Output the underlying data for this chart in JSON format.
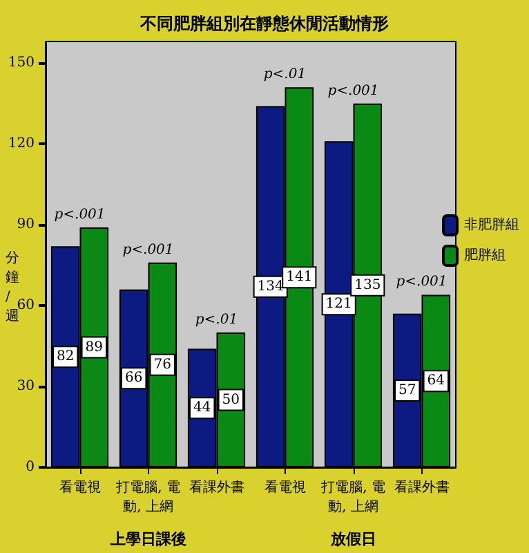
{
  "chart_data": {
    "type": "bar",
    "title": "不同肥胖組別在靜態休閒活動情形",
    "ylabel": "分鐘/週",
    "categories": [
      "看電視",
      "打電腦, 電動, 上網",
      "看課外書",
      "看電視",
      "打電腦, 電動, 上網",
      "看課外書"
    ],
    "series": [
      {
        "name": "非肥胖組",
        "color": "#0c1a82",
        "values": [
          82,
          66,
          44,
          134,
          121,
          57
        ]
      },
      {
        "name": "肥胖組",
        "color": "#0a8a14",
        "values": [
          89,
          76,
          50,
          141,
          135,
          64
        ]
      }
    ],
    "ylim": [
      0,
      158
    ],
    "yticks": [
      0,
      30,
      60,
      90,
      120,
      150
    ],
    "grid": false,
    "legend": "right",
    "data_labels": true,
    "annotations": [
      "p<.001",
      "p<.001",
      "p<.01",
      "p<.01",
      "p<.001",
      "p<.001",
      "上學日課後",
      "放假日"
    ]
  }
}
